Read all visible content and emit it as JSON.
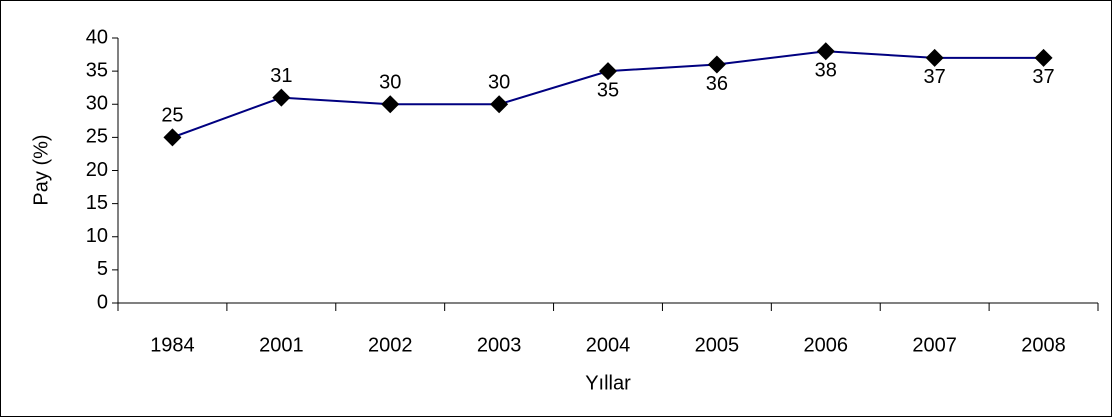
{
  "chart_data": {
    "type": "line",
    "x_label": "Yıllar",
    "y_label": "Pay (%)",
    "categories": [
      "1984",
      "2001",
      "2002",
      "2003",
      "2004",
      "2005",
      "2006",
      "2007",
      "2008"
    ],
    "series": [
      {
        "name": "Pay",
        "color": "#000080",
        "marker_color": "#000000",
        "values": [
          25,
          31,
          30,
          30,
          35,
          36,
          38,
          37,
          37
        ]
      }
    ],
    "ylim": [
      0,
      40
    ],
    "yticks": [
      0,
      5,
      10,
      15,
      20,
      25,
      30,
      35,
      40
    ],
    "grid": false,
    "legend": false
  }
}
